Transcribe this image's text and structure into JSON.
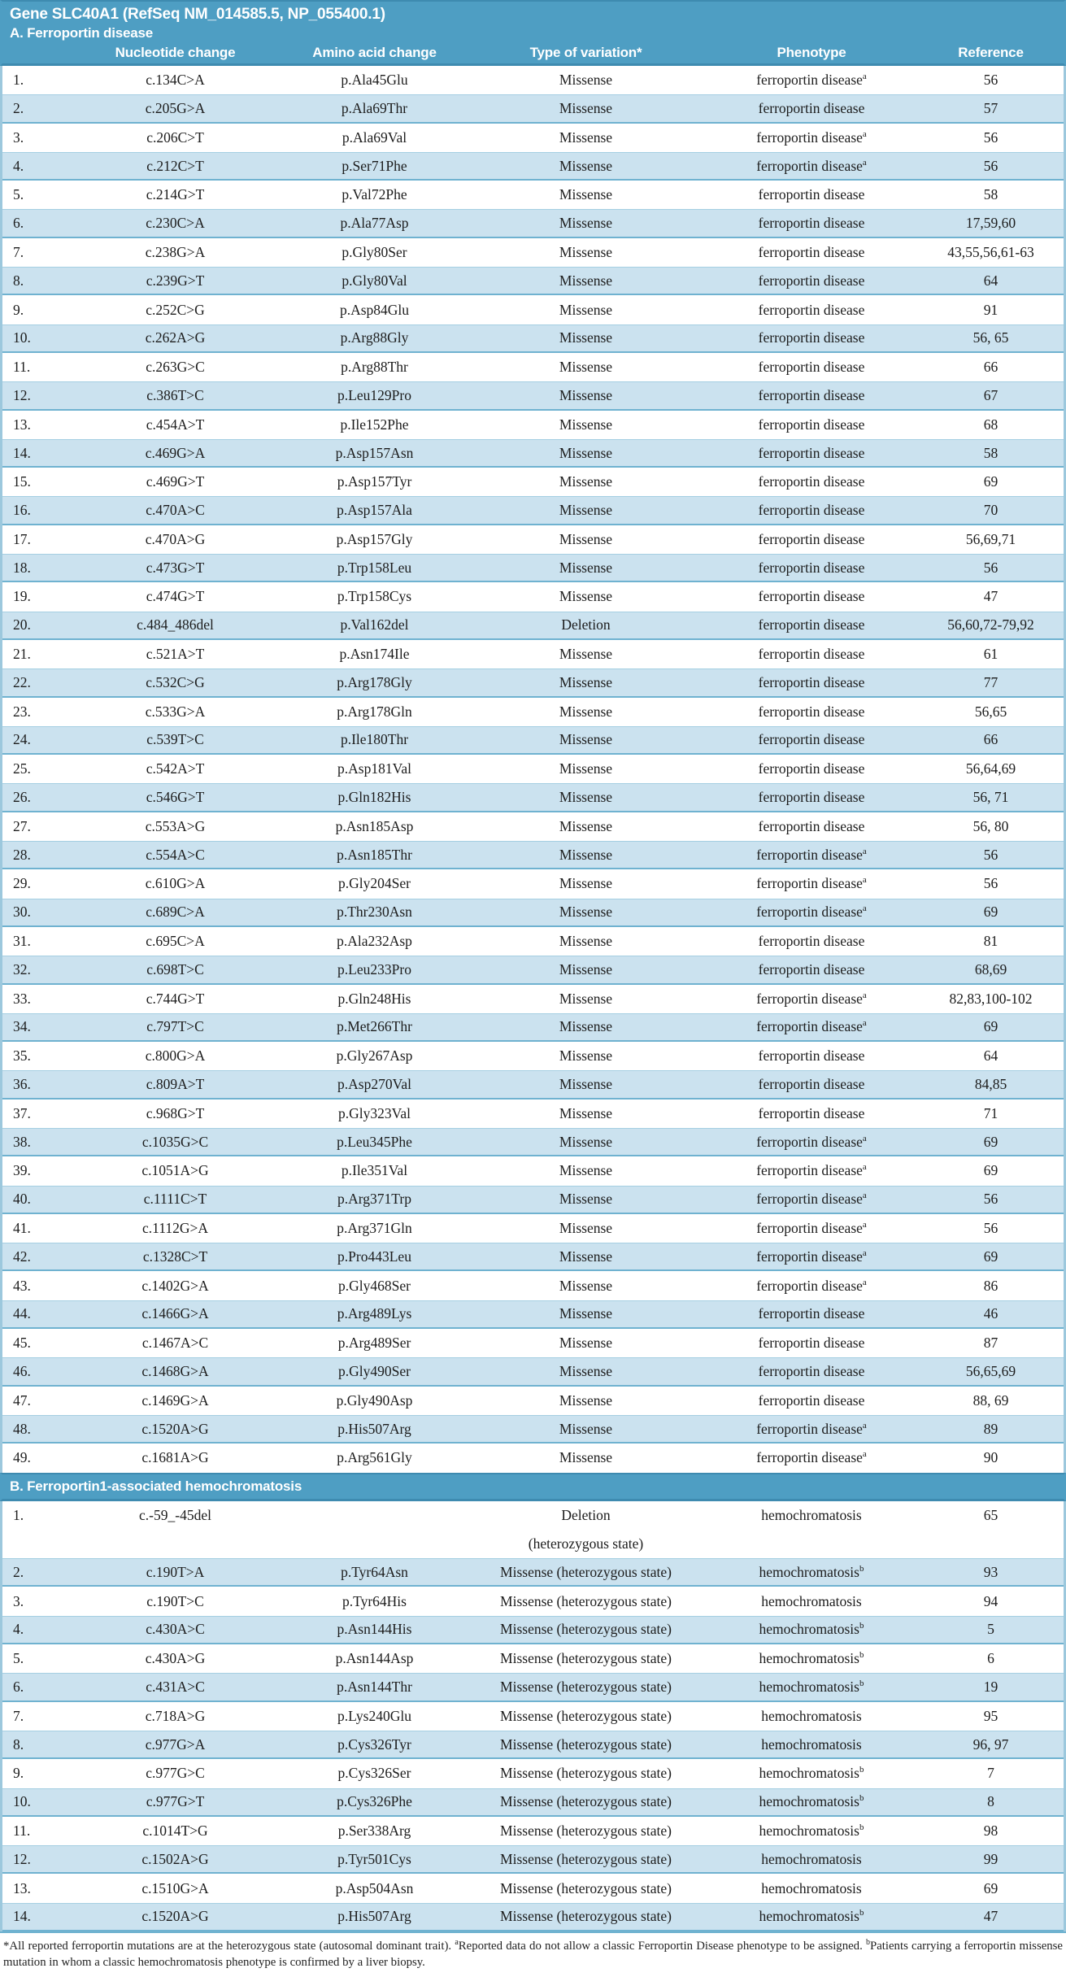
{
  "header": {
    "title": "Gene SLC40A1 (RefSeq NM_014585.5, NP_055400.1)"
  },
  "columns": [
    "Nucleotide change",
    "Amino acid change",
    "Type of variation*",
    "Phenotype",
    "Reference"
  ],
  "colors": {
    "band_teal": "#4E9EC3",
    "row_light_blue": "#CBE2EF",
    "row_white": "#FFFFFF",
    "separator_teal": "#6FB2D0",
    "header_text": "#FFFFFF",
    "body_text": "#1C1C1C"
  },
  "sections": {
    "a": {
      "label": "A. Ferroportin disease",
      "rows": [
        {
          "no": "1.",
          "nucleotide": "c.134C>A",
          "amino_acid": "p.Ala45Glu",
          "variation": "Missense",
          "phenotype": "ferroportin disease",
          "phenotype_sup": "a",
          "reference": "56"
        },
        {
          "no": "2.",
          "nucleotide": "c.205G>A",
          "amino_acid": "p.Ala69Thr",
          "variation": "Missense",
          "phenotype": "ferroportin disease",
          "phenotype_sup": "",
          "reference": "57"
        },
        {
          "no": "3.",
          "nucleotide": "c.206C>T",
          "amino_acid": "p.Ala69Val",
          "variation": "Missense",
          "phenotype": "ferroportin disease",
          "phenotype_sup": "a",
          "reference": "56"
        },
        {
          "no": "4.",
          "nucleotide": "c.212C>T",
          "amino_acid": "p.Ser71Phe",
          "variation": "Missense",
          "phenotype": "ferroportin disease",
          "phenotype_sup": "a",
          "reference": "56"
        },
        {
          "no": "5.",
          "nucleotide": "c.214G>T",
          "amino_acid": "p.Val72Phe",
          "variation": "Missense",
          "phenotype": "ferroportin disease",
          "phenotype_sup": "",
          "reference": "58"
        },
        {
          "no": "6.",
          "nucleotide": "c.230C>A",
          "amino_acid": "p.Ala77Asp",
          "variation": "Missense",
          "phenotype": "ferroportin disease",
          "phenotype_sup": "",
          "reference": "17,59,60"
        },
        {
          "no": "7.",
          "nucleotide": "c.238G>A",
          "amino_acid": "p.Gly80Ser",
          "variation": "Missense",
          "phenotype": "ferroportin disease",
          "phenotype_sup": "",
          "reference": "43,55,56,61-63"
        },
        {
          "no": "8.",
          "nucleotide": "c.239G>T",
          "amino_acid": "p.Gly80Val",
          "variation": "Missense",
          "phenotype": "ferroportin disease",
          "phenotype_sup": "",
          "reference": "64"
        },
        {
          "no": "9.",
          "nucleotide": "c.252C>G",
          "amino_acid": "p.Asp84Glu",
          "variation": "Missense",
          "phenotype": "ferroportin disease",
          "phenotype_sup": "",
          "reference": "91"
        },
        {
          "no": "10.",
          "nucleotide": "c.262A>G",
          "amino_acid": "p.Arg88Gly",
          "variation": "Missense",
          "phenotype": "ferroportin disease",
          "phenotype_sup": "",
          "reference": "56, 65"
        },
        {
          "no": "11.",
          "nucleotide": "c.263G>C",
          "amino_acid": "p.Arg88Thr",
          "variation": "Missense",
          "phenotype": "ferroportin disease",
          "phenotype_sup": "",
          "reference": "66"
        },
        {
          "no": "12.",
          "nucleotide": "c.386T>C",
          "amino_acid": "p.Leu129Pro",
          "variation": "Missense",
          "phenotype": "ferroportin disease",
          "phenotype_sup": "",
          "reference": "67"
        },
        {
          "no": "13.",
          "nucleotide": "c.454A>T",
          "amino_acid": "p.Ile152Phe",
          "variation": "Missense",
          "phenotype": "ferroportin disease",
          "phenotype_sup": "",
          "reference": "68"
        },
        {
          "no": "14.",
          "nucleotide": "c.469G>A",
          "amino_acid": "p.Asp157Asn",
          "variation": "Missense",
          "phenotype": "ferroportin disease",
          "phenotype_sup": "",
          "reference": "58"
        },
        {
          "no": "15.",
          "nucleotide": "c.469G>T",
          "amino_acid": "p.Asp157Tyr",
          "variation": "Missense",
          "phenotype": "ferroportin disease",
          "phenotype_sup": "",
          "reference": "69"
        },
        {
          "no": "16.",
          "nucleotide": "c.470A>C",
          "amino_acid": "p.Asp157Ala",
          "variation": "Missense",
          "phenotype": "ferroportin disease",
          "phenotype_sup": "",
          "reference": "70"
        },
        {
          "no": "17.",
          "nucleotide": "c.470A>G",
          "amino_acid": "p.Asp157Gly",
          "variation": "Missense",
          "phenotype": "ferroportin disease",
          "phenotype_sup": "",
          "reference": "56,69,71"
        },
        {
          "no": "18.",
          "nucleotide": "c.473G>T",
          "amino_acid": "p.Trp158Leu",
          "variation": "Missense",
          "phenotype": "ferroportin disease",
          "phenotype_sup": "",
          "reference": "56"
        },
        {
          "no": "19.",
          "nucleotide": "c.474G>T",
          "amino_acid": "p.Trp158Cys",
          "variation": "Missense",
          "phenotype": "ferroportin disease",
          "phenotype_sup": "",
          "reference": "47"
        },
        {
          "no": "20.",
          "nucleotide": "c.484_486del",
          "amino_acid": "p.Val162del",
          "variation": "Deletion",
          "phenotype": "ferroportin disease",
          "phenotype_sup": "",
          "reference": "56,60,72-79,92"
        },
        {
          "no": "21.",
          "nucleotide": "c.521A>T",
          "amino_acid": "p.Asn174Ile",
          "variation": "Missense",
          "phenotype": "ferroportin disease",
          "phenotype_sup": "",
          "reference": "61"
        },
        {
          "no": "22.",
          "nucleotide": "c.532C>G",
          "amino_acid": "p.Arg178Gly",
          "variation": "Missense",
          "phenotype": "ferroportin disease",
          "phenotype_sup": "",
          "reference": "77"
        },
        {
          "no": "23.",
          "nucleotide": "c.533G>A",
          "amino_acid": "p.Arg178Gln",
          "variation": "Missense",
          "phenotype": "ferroportin disease",
          "phenotype_sup": "",
          "reference": "56,65"
        },
        {
          "no": "24.",
          "nucleotide": "c.539T>C",
          "amino_acid": "p.Ile180Thr",
          "variation": "Missense",
          "phenotype": "ferroportin disease",
          "phenotype_sup": "",
          "reference": "66"
        },
        {
          "no": "25.",
          "nucleotide": "c.542A>T",
          "amino_acid": "p.Asp181Val",
          "variation": "Missense",
          "phenotype": "ferroportin disease",
          "phenotype_sup": "",
          "reference": "56,64,69"
        },
        {
          "no": "26.",
          "nucleotide": "c.546G>T",
          "amino_acid": "p.Gln182His",
          "variation": "Missense",
          "phenotype": "ferroportin disease",
          "phenotype_sup": "",
          "reference": "56, 71"
        },
        {
          "no": "27.",
          "nucleotide": "c.553A>G",
          "amino_acid": "p.Asn185Asp",
          "variation": "Missense",
          "phenotype": "ferroportin disease",
          "phenotype_sup": "",
          "reference": "56, 80"
        },
        {
          "no": "28.",
          "nucleotide": "c.554A>C",
          "amino_acid": "p.Asn185Thr",
          "variation": "Missense",
          "phenotype": "ferroportin disease",
          "phenotype_sup": "a",
          "reference": "56"
        },
        {
          "no": "29.",
          "nucleotide": "c.610G>A",
          "amino_acid": "p.Gly204Ser",
          "variation": "Missense",
          "phenotype": "ferroportin disease",
          "phenotype_sup": "a",
          "reference": "56"
        },
        {
          "no": "30.",
          "nucleotide": "c.689C>A",
          "amino_acid": "p.Thr230Asn",
          "variation": "Missense",
          "phenotype": "ferroportin disease",
          "phenotype_sup": "a",
          "reference": "69"
        },
        {
          "no": "31.",
          "nucleotide": "c.695C>A",
          "amino_acid": "p.Ala232Asp",
          "variation": "Missense",
          "phenotype": "ferroportin disease",
          "phenotype_sup": "",
          "reference": "81"
        },
        {
          "no": "32.",
          "nucleotide": "c.698T>C",
          "amino_acid": "p.Leu233Pro",
          "variation": "Missense",
          "phenotype": "ferroportin disease",
          "phenotype_sup": "",
          "reference": "68,69"
        },
        {
          "no": "33.",
          "nucleotide": "c.744G>T",
          "amino_acid": "p.Gln248His",
          "variation": "Missense",
          "phenotype": "ferroportin disease",
          "phenotype_sup": "a",
          "reference": "82,83,100-102"
        },
        {
          "no": "34.",
          "nucleotide": "c.797T>C",
          "amino_acid": "p.Met266Thr",
          "variation": "Missense",
          "phenotype": "ferroportin disease",
          "phenotype_sup": "a",
          "reference": "69"
        },
        {
          "no": "35.",
          "nucleotide": "c.800G>A",
          "amino_acid": "p.Gly267Asp",
          "variation": "Missense",
          "phenotype": "ferroportin disease",
          "phenotype_sup": "",
          "reference": "64"
        },
        {
          "no": "36.",
          "nucleotide": "c.809A>T",
          "amino_acid": "p.Asp270Val",
          "variation": "Missense",
          "phenotype": "ferroportin disease",
          "phenotype_sup": "",
          "reference": "84,85"
        },
        {
          "no": "37.",
          "nucleotide": "c.968G>T",
          "amino_acid": "p.Gly323Val",
          "variation": "Missense",
          "phenotype": "ferroportin disease",
          "phenotype_sup": "",
          "reference": "71"
        },
        {
          "no": "38.",
          "nucleotide": "c.1035G>C",
          "amino_acid": "p.Leu345Phe",
          "variation": "Missense",
          "phenotype": "ferroportin disease",
          "phenotype_sup": "a",
          "reference": "69"
        },
        {
          "no": "39.",
          "nucleotide": "c.1051A>G",
          "amino_acid": "p.Ile351Val",
          "variation": "Missense",
          "phenotype": "ferroportin disease",
          "phenotype_sup": "a",
          "reference": "69"
        },
        {
          "no": "40.",
          "nucleotide": "c.1111C>T",
          "amino_acid": "p.Arg371Trp",
          "variation": "Missense",
          "phenotype": "ferroportin disease",
          "phenotype_sup": "a",
          "reference": "56"
        },
        {
          "no": "41.",
          "nucleotide": "c.1112G>A",
          "amino_acid": "p.Arg371Gln",
          "variation": "Missense",
          "phenotype": "ferroportin disease",
          "phenotype_sup": "a",
          "reference": "56"
        },
        {
          "no": "42.",
          "nucleotide": "c.1328C>T",
          "amino_acid": "p.Pro443Leu",
          "variation": "Missense",
          "phenotype": "ferroportin disease",
          "phenotype_sup": "a",
          "reference": "69"
        },
        {
          "no": "43.",
          "nucleotide": "c.1402G>A",
          "amino_acid": "p.Gly468Ser",
          "variation": "Missense",
          "phenotype": "ferroportin disease",
          "phenotype_sup": "a",
          "reference": "86"
        },
        {
          "no": "44.",
          "nucleotide": "c.1466G>A",
          "amino_acid": "p.Arg489Lys",
          "variation": "Missense",
          "phenotype": "ferroportin disease",
          "phenotype_sup": "",
          "reference": "46"
        },
        {
          "no": "45.",
          "nucleotide": "c.1467A>C",
          "amino_acid": "p.Arg489Ser",
          "variation": "Missense",
          "phenotype": "ferroportin disease",
          "phenotype_sup": "",
          "reference": "87"
        },
        {
          "no": "46.",
          "nucleotide": "c.1468G>A",
          "amino_acid": "p.Gly490Ser",
          "variation": "Missense",
          "phenotype": "ferroportin disease",
          "phenotype_sup": "",
          "reference": "56,65,69"
        },
        {
          "no": "47.",
          "nucleotide": "c.1469G>A",
          "amino_acid": "p.Gly490Asp",
          "variation": "Missense",
          "phenotype": "ferroportin disease",
          "phenotype_sup": "",
          "reference": "88, 69"
        },
        {
          "no": "48.",
          "nucleotide": "c.1520A>G",
          "amino_acid": "p.His507Arg",
          "variation": "Missense",
          "phenotype": "ferroportin disease",
          "phenotype_sup": "a",
          "reference": "89"
        },
        {
          "no": "49.",
          "nucleotide": "c.1681A>G",
          "amino_acid": "p.Arg561Gly",
          "variation": "Missense",
          "phenotype": "ferroportin disease",
          "phenotype_sup": "a",
          "reference": "90"
        }
      ]
    },
    "b": {
      "label": "B. Ferroportin1-associated hemochromatosis",
      "rows": [
        {
          "no": "1.",
          "nucleotide": "c.-59_-45del",
          "amino_acid": "",
          "variation": "Deletion",
          "variation_line2": "(heterozygous state)",
          "phenotype": "hemochromatosis",
          "phenotype_sup": "",
          "reference": "65"
        },
        {
          "no": "2.",
          "nucleotide": "c.190T>A",
          "amino_acid": "p.Tyr64Asn",
          "variation": "Missense (heterozygous state)",
          "phenotype": "hemochromatosis",
          "phenotype_sup": "b",
          "reference": "93"
        },
        {
          "no": "3.",
          "nucleotide": "c.190T>C",
          "amino_acid": "p.Tyr64His",
          "variation": "Missense (heterozygous state)",
          "phenotype": "hemochromatosis",
          "phenotype_sup": "",
          "reference": "94"
        },
        {
          "no": "4.",
          "nucleotide": "c.430A>C",
          "amino_acid": "p.Asn144His",
          "variation": "Missense (heterozygous state)",
          "phenotype": "hemochromatosis",
          "phenotype_sup": "b",
          "reference": "5"
        },
        {
          "no": "5.",
          "nucleotide": "c.430A>G",
          "amino_acid": "p.Asn144Asp",
          "variation": "Missense (heterozygous state)",
          "phenotype": "hemochromatosis",
          "phenotype_sup": "b",
          "reference": "6"
        },
        {
          "no": "6.",
          "nucleotide": "c.431A>C",
          "amino_acid": "p.Asn144Thr",
          "variation": "Missense (heterozygous state)",
          "phenotype": "hemochromatosis",
          "phenotype_sup": "b",
          "reference": "19"
        },
        {
          "no": "7.",
          "nucleotide": "c.718A>G",
          "amino_acid": "p.Lys240Glu",
          "variation": "Missense (heterozygous state)",
          "phenotype": "hemochromatosis",
          "phenotype_sup": "",
          "reference": "95"
        },
        {
          "no": "8.",
          "nucleotide": "c.977G>A",
          "amino_acid": "p.Cys326Tyr",
          "variation": "Missense (heterozygous state)",
          "phenotype": "hemochromatosis",
          "phenotype_sup": "",
          "reference": "96, 97"
        },
        {
          "no": "9.",
          "nucleotide": "c.977G>C",
          "amino_acid": "p.Cys326Ser",
          "variation": "Missense (heterozygous state)",
          "phenotype": "hemochromatosis",
          "phenotype_sup": "b",
          "reference": "7"
        },
        {
          "no": "10.",
          "nucleotide": "c.977G>T",
          "amino_acid": "p.Cys326Phe",
          "variation": "Missense (heterozygous state)",
          "phenotype": "hemochromatosis",
          "phenotype_sup": "b",
          "reference": "8"
        },
        {
          "no": "11.",
          "nucleotide": "c.1014T>G",
          "amino_acid": "p.Ser338Arg",
          "variation": "Missense (heterozygous state)",
          "phenotype": "hemochromatosis",
          "phenotype_sup": "b",
          "reference": "98"
        },
        {
          "no": "12.",
          "nucleotide": "c.1502A>G",
          "amino_acid": "p.Tyr501Cys",
          "variation": "Missense (heterozygous state)",
          "phenotype": "hemochromatosis",
          "phenotype_sup": "",
          "reference": "99"
        },
        {
          "no": "13.",
          "nucleotide": "c.1510G>A",
          "amino_acid": "p.Asp504Asn",
          "variation": "Missense (heterozygous state)",
          "phenotype": "hemochromatosis",
          "phenotype_sup": "",
          "reference": "69"
        },
        {
          "no": "14.",
          "nucleotide": "c.1520A>G",
          "amino_acid": "p.His507Arg",
          "variation": "Missense (heterozygous state)",
          "phenotype": "hemochromatosis",
          "phenotype_sup": "b",
          "reference": "47"
        }
      ]
    }
  },
  "footnote": {
    "part1": "*All reported ferroportin mutations are at the heterozygous state (autosomal dominant trait). ",
    "sup1": "a",
    "part2": "Reported data do not allow a classic Ferroportin Disease phenotype to be assigned. ",
    "sup2": "b",
    "part3": "Patients carrying a ferroportin missense mutation in whom a classic hemochromatosis phenotype is confirmed by a liver biopsy."
  }
}
